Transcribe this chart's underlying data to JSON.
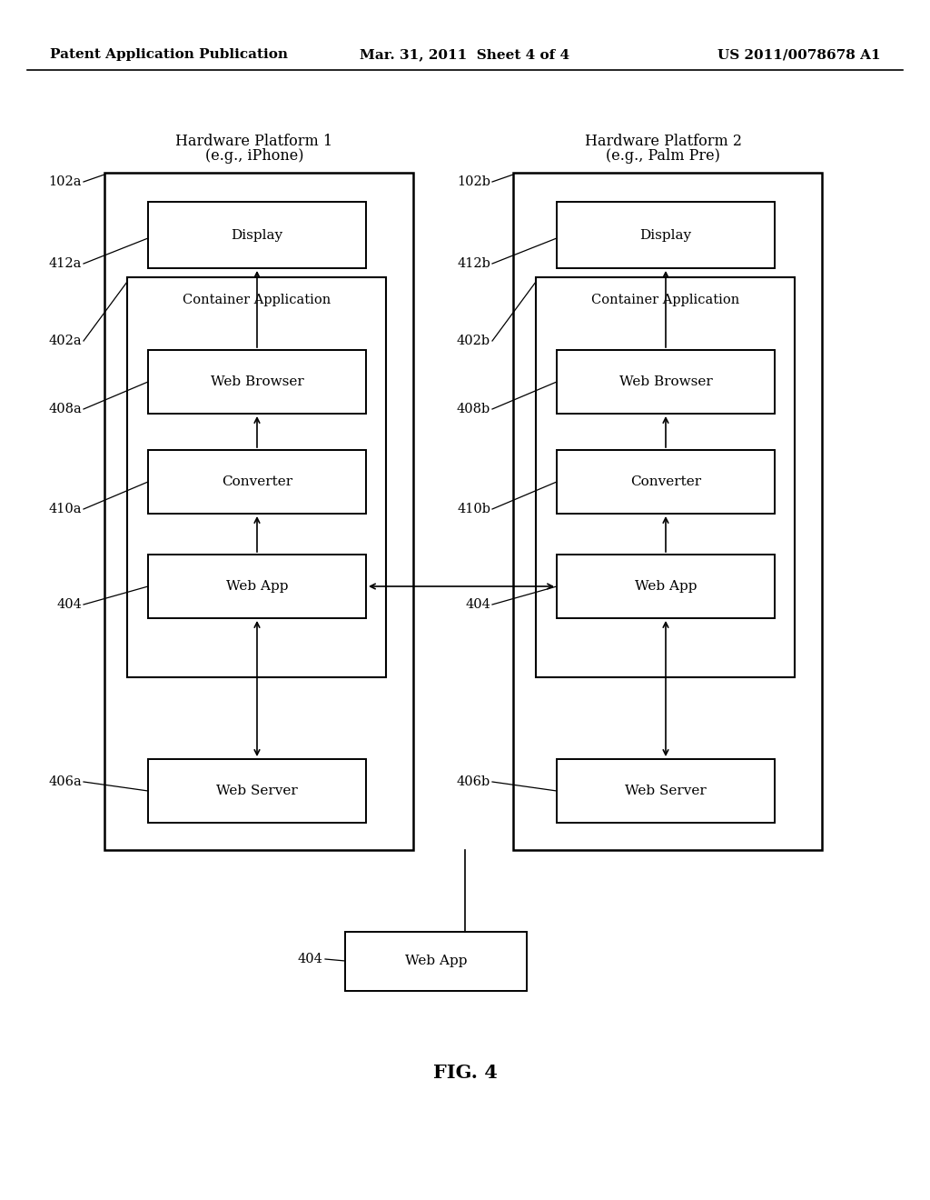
{
  "bg_color": "#ffffff",
  "header_left": "Patent Application Publication",
  "header_center": "Mar. 31, 2011  Sheet 4 of 4",
  "header_right": "US 2011/0078678 A1",
  "fig_label": "FIG. 4",
  "platform1_title": "Hardware Platform 1",
  "platform1_subtitle": "(e.g., iPhone)",
  "platform2_title": "Hardware Platform 2",
  "platform2_subtitle": "(e.g., Palm Pre)"
}
